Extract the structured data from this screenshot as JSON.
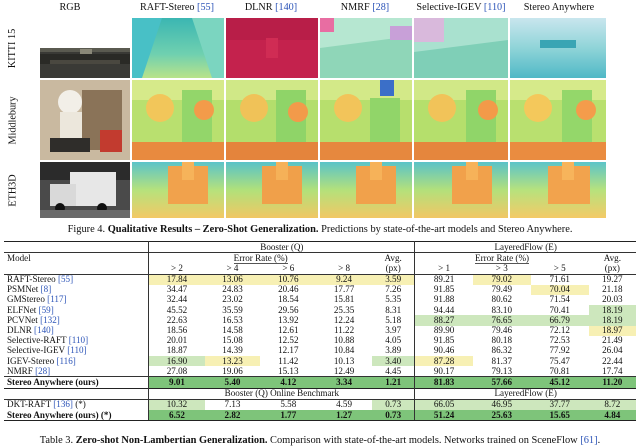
{
  "figure": {
    "columns": [
      {
        "label": "RGB",
        "ref": ""
      },
      {
        "label": "RAFT-Stereo",
        "ref": "[55]"
      },
      {
        "label": "DLNR",
        "ref": "[140]"
      },
      {
        "label": "NMRF",
        "ref": "[28]"
      },
      {
        "label": "Selective-IGEV",
        "ref": "[110]"
      },
      {
        "label": "Stereo Anywhere",
        "ref": ""
      }
    ],
    "rows": [
      "KITTI 15",
      "Middlebury",
      "ETH3D"
    ],
    "caption_prefix": "Figure 4.",
    "caption_bold": "Qualitative Results – Zero-Shot Generalization.",
    "caption_text": " Predictions by state-of-the-art models and Stereo Anywhere."
  },
  "table": {
    "col_model": "Model",
    "group1": "Booster (Q)",
    "group2": "LayeredFlow (E)",
    "error_rate": "Error Rate (%)",
    "avg": "Avg.",
    "px": "(px)",
    "thresh1": [
      "> 2",
      "> 4",
      "> 6",
      "> 8"
    ],
    "thresh2": [
      "> 1",
      "> 3",
      "> 5"
    ],
    "rows": [
      {
        "name": "RAFT-Stereo",
        "ref": "[55]",
        "v": [
          "17.84",
          "13.06",
          "10.76",
          "9.24",
          "3.59",
          "89.21",
          "79.02",
          "71.61",
          "19.27"
        ]
      },
      {
        "name": "PSMNet",
        "ref": "[8]",
        "v": [
          "34.47",
          "24.83",
          "20.46",
          "17.77",
          "7.26",
          "91.85",
          "79.49",
          "70.04",
          "21.18"
        ]
      },
      {
        "name": "GMStereo",
        "ref": "[117]",
        "v": [
          "32.44",
          "23.02",
          "18.54",
          "15.81",
          "5.35",
          "91.88",
          "80.62",
          "71.54",
          "20.03"
        ]
      },
      {
        "name": "ELFNet",
        "ref": "[59]",
        "v": [
          "45.52",
          "35.59",
          "29.56",
          "25.35",
          "8.31",
          "94.44",
          "83.10",
          "70.41",
          "18.19"
        ]
      },
      {
        "name": "PCVNet",
        "ref": "[132]",
        "v": [
          "22.63",
          "16.53",
          "13.92",
          "12.24",
          "5.18",
          "88.27",
          "76.65",
          "66.79",
          "18.19"
        ]
      },
      {
        "name": "DLNR",
        "ref": "[140]",
        "v": [
          "18.56",
          "14.58",
          "12.61",
          "11.22",
          "3.97",
          "89.90",
          "79.46",
          "72.12",
          "18.97"
        ]
      },
      {
        "name": "Selective-RAFT",
        "ref": "[110]",
        "v": [
          "20.01",
          "15.08",
          "12.52",
          "10.88",
          "4.05",
          "91.85",
          "80.18",
          "72.53",
          "21.49"
        ]
      },
      {
        "name": "Selective-IGEV",
        "ref": "[110]",
        "v": [
          "18.87",
          "14.39",
          "12.17",
          "10.84",
          "3.89",
          "90.46",
          "86.32",
          "77.92",
          "26.04"
        ]
      },
      {
        "name": "IGEV-Stereo",
        "ref": "[116]",
        "v": [
          "16.90",
          "13.23",
          "11.42",
          "10.13",
          "3.40",
          "87.28",
          "81.37",
          "75.47",
          "22.44"
        ]
      },
      {
        "name": "NMRF",
        "ref": "[28]",
        "v": [
          "27.08",
          "19.06",
          "15.13",
          "12.49",
          "4.45",
          "90.17",
          "79.13",
          "70.81",
          "17.74"
        ]
      }
    ],
    "ours": {
      "name": "Stereo Anywhere (ours)",
      "v": [
        "9.01",
        "5.40",
        "4.12",
        "3.34",
        "1.21",
        "81.83",
        "57.66",
        "45.12",
        "11.20"
      ]
    },
    "online_group1": "Booster (Q) Online Benchmark",
    "online_group2": "LayeredFlow (E)",
    "online_rows": [
      {
        "name": "DKT-RAFT",
        "ref": "[136]",
        "mark": "(*)",
        "v": [
          "10.32",
          "7.13",
          "5.58",
          "4.59",
          "0.73",
          "66.05",
          "46.95",
          "37.77",
          "8.72"
        ],
        "bold": false
      },
      {
        "name": "Stereo Anywhere (ours)",
        "ref": "",
        "mark": "(*)",
        "v": [
          "6.52",
          "2.82",
          "1.77",
          "1.27",
          "0.73",
          "51.24",
          "25.63",
          "15.65",
          "4.84"
        ],
        "bold": true
      }
    ],
    "caption_prefix": "Table 3.",
    "caption_bold": "Zero-shot Non-Lambertian Generalization.",
    "caption_text": " Comparison with state-of-the-art models. Networks trained on SceneFlow",
    "caption_ref": "[61]",
    "caption_end": "."
  },
  "colors": {
    "best": "#7ec47a",
    "second": "#cde7bd",
    "third": "#f7f0b4",
    "ref": "#2c54b8"
  }
}
